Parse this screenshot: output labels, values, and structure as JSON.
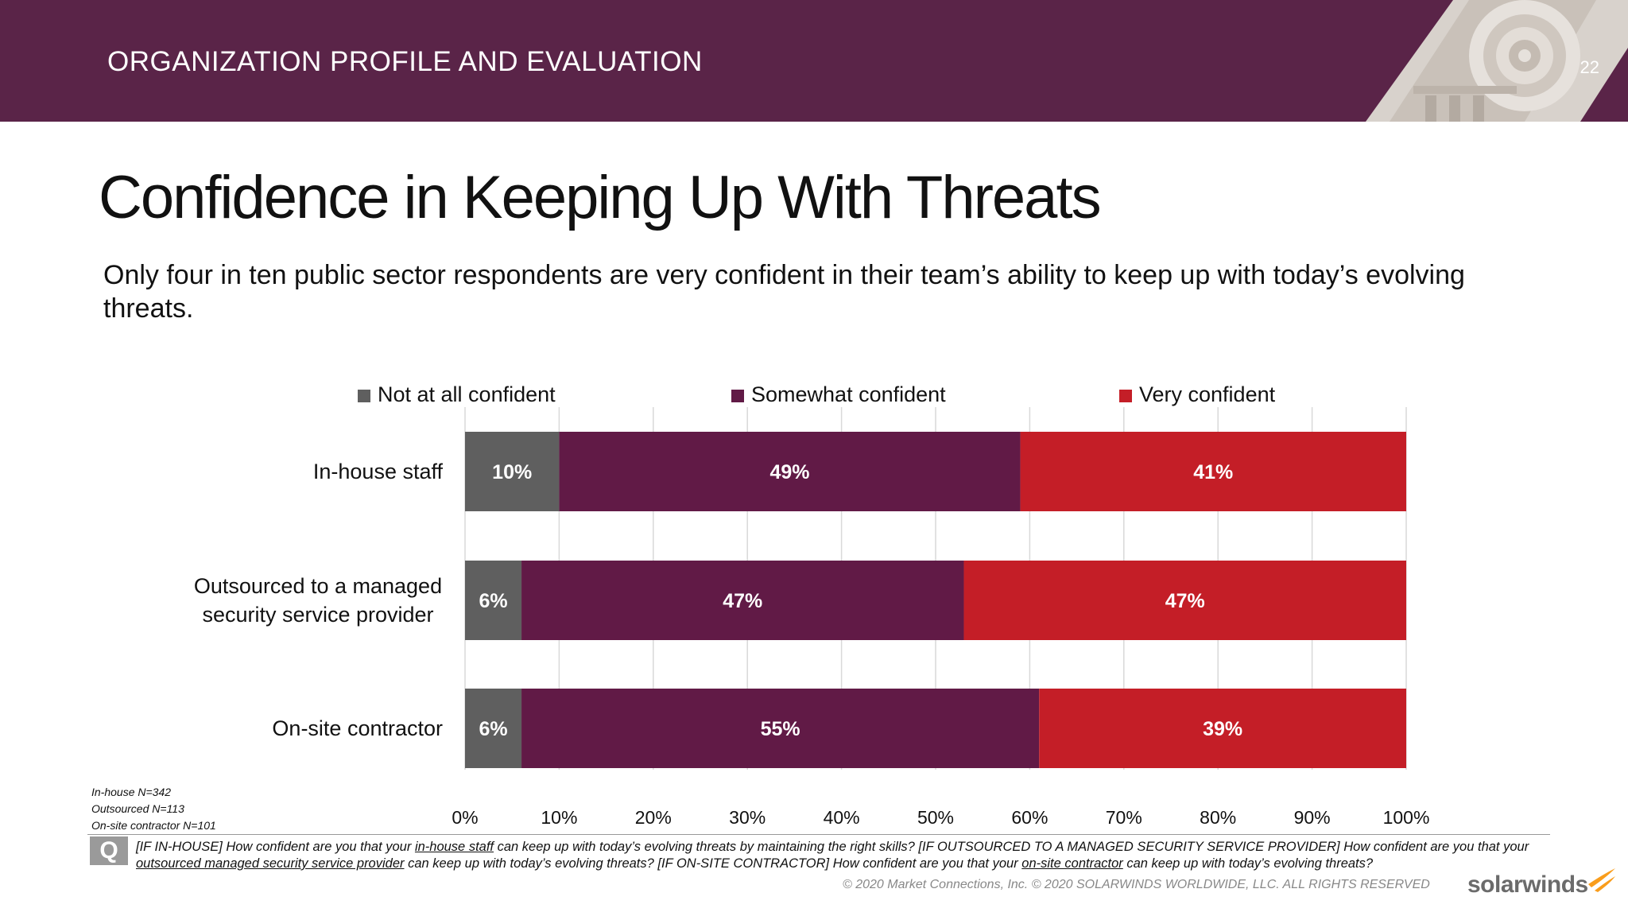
{
  "header": {
    "section_title": "ORGANIZATION PROFILE AND EVALUATION",
    "page_number": "22",
    "background_color": "#5a2448"
  },
  "slide": {
    "title": "Confidence in Keeping Up With Threats",
    "subtitle": "Only four in ten public sector respondents are very confident in their team’s ability to keep up with today’s evolving threats."
  },
  "chart_data": {
    "type": "bar",
    "orientation": "horizontal",
    "stacked": true,
    "categories": [
      "In-house staff",
      "Outsourced to a managed security service provider",
      "On-site contractor"
    ],
    "category_lines": [
      [
        "In-house staff"
      ],
      [
        "Outsourced to a managed",
        "security service provider"
      ],
      [
        "On-site contractor"
      ]
    ],
    "series": [
      {
        "name": "Not at all confident",
        "values": [
          10,
          6,
          6
        ],
        "labels": [
          "10%",
          "6%",
          "6%"
        ],
        "color": "#5f5f5f"
      },
      {
        "name": "Somewhat confident",
        "values": [
          49,
          47,
          55
        ],
        "labels": [
          "49%",
          "47%",
          "55%"
        ],
        "color": "#611a46"
      },
      {
        "name": "Very confident",
        "values": [
          41,
          47,
          39
        ],
        "labels": [
          "41%",
          "47%",
          "39%"
        ],
        "color": "#c41e27"
      }
    ],
    "xlim": [
      0,
      100
    ],
    "xticks": [
      0,
      10,
      20,
      30,
      40,
      50,
      60,
      70,
      80,
      90,
      100
    ],
    "xtick_labels": [
      "0%",
      "10%",
      "20%",
      "30%",
      "40%",
      "50%",
      "60%",
      "70%",
      "80%",
      "90%",
      "100%"
    ],
    "grid": true,
    "legend_position": "top"
  },
  "sample_sizes": [
    "In-house N=342",
    "Outsourced N=113",
    "On-site contractor N=101"
  ],
  "footer": {
    "q_label": "Q",
    "question_parts": [
      {
        "text": "[IF IN-HOUSE] How confident are you that your ",
        "u": false
      },
      {
        "text": "in-house staff",
        "u": true
      },
      {
        "text": " can keep up with today’s evolving threats by maintaining the right skills? [IF OUTSOURCED TO A MANAGED SECURITY SERVICE PROVIDER] How confident are you that your ",
        "u": false
      },
      {
        "text": "outsourced managed security service provider",
        "u": true
      },
      {
        "text": " can keep up with today’s evolving threats? [IF ON-SITE CONTRACTOR] How confident are you that your ",
        "u": false
      },
      {
        "text": "on-site contractor",
        "u": true
      },
      {
        "text": " can keep up with today’s evolving threats?",
        "u": false
      }
    ],
    "copyright": "© 2020 Market Connections, Inc. © 2020 SOLARWINDS WORLDWIDE, LLC. ALL RIGHTS RESERVED",
    "logo_text": "solarwinds",
    "logo_accent_color": "#f99d1c"
  }
}
